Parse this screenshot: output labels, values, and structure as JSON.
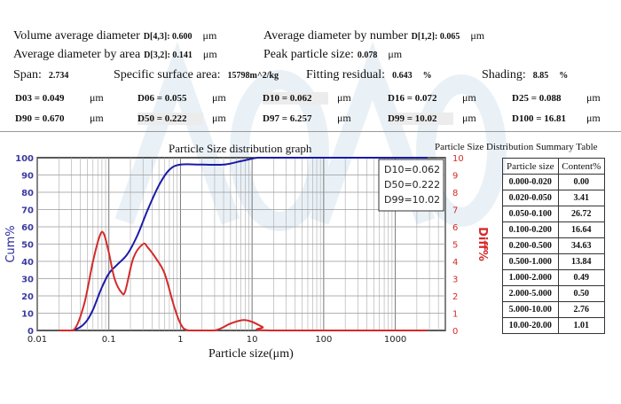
{
  "stats": {
    "vol_avg_label": "Volume average diameter",
    "vol_avg_sym": "D[4,3]",
    "vol_avg_value": "0.600",
    "vol_avg_unit": "μm",
    "num_avg_label": "Average diameter by number",
    "num_avg_sym": "D[1,2]",
    "num_avg_value": "0.065",
    "num_avg_unit": "μm",
    "area_avg_label": "Average diameter by area",
    "area_avg_sym": "D[3,2]",
    "area_avg_value": "0.141",
    "area_avg_unit": "μm",
    "peak_label": "Peak particle size:",
    "peak_value": "0.078",
    "peak_unit": "μm",
    "span_label": "Span:",
    "span_value": "2.734",
    "ssa_label": "Specific surface area:",
    "ssa_value": "15798m^2/kg",
    "fit_label": "Fitting residual:",
    "fit_value": "0.643",
    "fit_unit": "%",
    "shading_label": "Shading:",
    "shading_value": "8.85",
    "shading_unit": "%"
  },
  "d_values": [
    {
      "text": "D03 = 0.049",
      "unit": "μm"
    },
    {
      "text": "D06 = 0.055",
      "unit": "μm"
    },
    {
      "text": "D10 = 0.062",
      "unit": "μm"
    },
    {
      "text": "D16 = 0.072",
      "unit": "μm"
    },
    {
      "text": "D25 = 0.088",
      "unit": "μm"
    },
    {
      "text": "D90 = 0.670",
      "unit": "μm"
    },
    {
      "text": "D50 = 0.222",
      "unit": "μm"
    },
    {
      "text": "D97 = 6.257",
      "unit": "μm"
    },
    {
      "text": "D99 = 10.02",
      "unit": "μm"
    },
    {
      "text": "D100 = 16.81",
      "unit": "μm"
    }
  ],
  "watermark": "AOAO lab",
  "chart_data": {
    "type": "line",
    "title": "Particle Size distribution graph",
    "xlabel": "Particle size(μm)",
    "ylabel": "Cum%",
    "y2label": "Diff%",
    "xscale": "log",
    "xlim": [
      0.01,
      5000
    ],
    "ylim": [
      0,
      100
    ],
    "y2lim": [
      0,
      10
    ],
    "grid": true,
    "xticks": [
      "0.01",
      "0.1",
      "1",
      "10",
      "100",
      "1000"
    ],
    "yticks": [
      "0",
      "10",
      "20",
      "30",
      "40",
      "50",
      "60",
      "70",
      "80",
      "90",
      "100"
    ],
    "y2ticks": [
      "0",
      "1",
      "2",
      "3",
      "4",
      "5",
      "6",
      "7",
      "8",
      "9",
      "10"
    ],
    "annotation": [
      "D10=0.062",
      "D50=0.222",
      "D99=10.02"
    ],
    "series": [
      {
        "axis": "left",
        "color": "#1a1aa8",
        "x": [
          0.02,
          0.03,
          0.04,
          0.05,
          0.06,
          0.07,
          0.08,
          0.1,
          0.13,
          0.18,
          0.25,
          0.35,
          0.5,
          0.7,
          1,
          2,
          4,
          7,
          12,
          20,
          100,
          2800
        ],
        "y": [
          0,
          0,
          2,
          6,
          12,
          19,
          25,
          33,
          38,
          44,
          55,
          70,
          84,
          93,
          96,
          96,
          96,
          98,
          100,
          100,
          100,
          100
        ]
      },
      {
        "axis": "right",
        "color": "#d42a2a",
        "x": [
          0.02,
          0.032,
          0.045,
          0.06,
          0.075,
          0.085,
          0.1,
          0.12,
          0.15,
          0.17,
          0.22,
          0.3,
          0.35,
          0.45,
          0.6,
          0.8,
          1,
          1.3,
          3,
          5,
          7.5,
          10,
          14,
          18,
          2800
        ],
        "y": [
          0,
          0,
          1.5,
          4,
          5.5,
          5.6,
          4.5,
          3,
          2.2,
          2.3,
          4.2,
          5,
          4.8,
          4.2,
          3.3,
          1.5,
          0.4,
          0,
          0,
          0.4,
          0.6,
          0.5,
          0.2,
          0,
          0
        ]
      }
    ]
  },
  "summary": {
    "title": "Particle Size Distribution Summary Table",
    "headers": [
      "Particle size",
      "Content%"
    ],
    "rows": [
      [
        "0.000-0.020",
        "0.00"
      ],
      [
        "0.020-0.050",
        "3.41"
      ],
      [
        "0.050-0.100",
        "26.72"
      ],
      [
        "0.100-0.200",
        "16.64"
      ],
      [
        "0.200-0.500",
        "34.63"
      ],
      [
        "0.500-1.000",
        "13.84"
      ],
      [
        "1.000-2.000",
        "0.49"
      ],
      [
        "2.000-5.000",
        "0.50"
      ],
      [
        "5.000-10.00",
        "2.76"
      ],
      [
        "10.00-20.00",
        "1.01"
      ]
    ]
  }
}
